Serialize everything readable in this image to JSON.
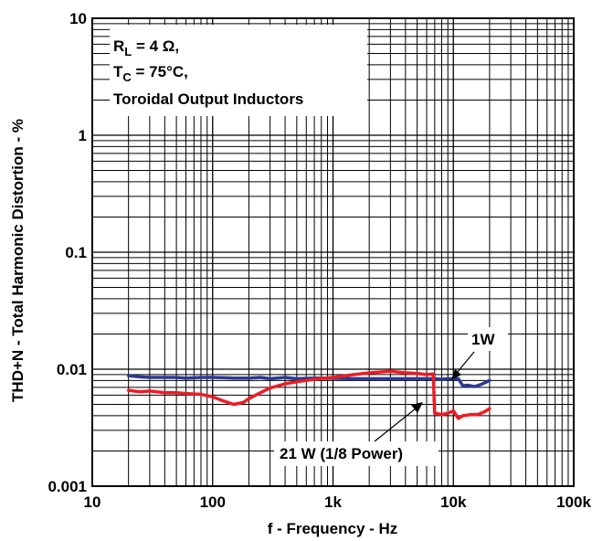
{
  "chart_data": {
    "type": "line",
    "xlabel": "f - Frequency - Hz",
    "ylabel": "THD+N - Total Harmonic Distortion - %",
    "x_scale": "log",
    "y_scale": "log",
    "xlim": [
      10,
      100000
    ],
    "ylim": [
      0.001,
      10
    ],
    "grid": true,
    "x_ticks": [
      {
        "value": 10,
        "label": "10"
      },
      {
        "value": 100,
        "label": "100"
      },
      {
        "value": 1000,
        "label": "1k"
      },
      {
        "value": 10000,
        "label": "10k"
      },
      {
        "value": 100000,
        "label": "100k"
      }
    ],
    "y_ticks": [
      {
        "value": 10,
        "label": "10"
      },
      {
        "value": 1,
        "label": "1"
      },
      {
        "value": 0.1,
        "label": "0.1"
      },
      {
        "value": 0.01,
        "label": "0.01"
      },
      {
        "value": 0.001,
        "label": "0.001"
      }
    ],
    "conditions": {
      "line1_main": "R",
      "line1_sub": "L",
      "line1_rest": " = 4 Ω,",
      "line2_main": "T",
      "line2_sub": "C",
      "line2_rest": " = 75°C,",
      "line3": "Toroidal Output Inductors"
    },
    "series": [
      {
        "label": "1W",
        "color": "#2b3990",
        "x": [
          20,
          25,
          30,
          40,
          50,
          60,
          80,
          100,
          150,
          200,
          250,
          300,
          400,
          500,
          700,
          1000,
          1500,
          2000,
          3000,
          4000,
          5000,
          6000,
          7000,
          8000,
          9000,
          10000,
          11000,
          12000,
          13000,
          15000,
          17000,
          20000
        ],
        "y": [
          0.0088,
          0.0086,
          0.0085,
          0.0085,
          0.0085,
          0.0084,
          0.0085,
          0.0085,
          0.0084,
          0.0084,
          0.0085,
          0.0083,
          0.0085,
          0.0083,
          0.0084,
          0.0084,
          0.0083,
          0.0083,
          0.0083,
          0.0083,
          0.0083,
          0.0083,
          0.0083,
          0.0082,
          0.0083,
          0.0083,
          0.0083,
          0.0072,
          0.0073,
          0.0071,
          0.0074,
          0.008
        ]
      },
      {
        "label": "21 W (1/8 Power)",
        "color": "#ed1c24",
        "x": [
          20,
          25,
          30,
          40,
          50,
          60,
          80,
          100,
          120,
          150,
          180,
          200,
          250,
          300,
          400,
          500,
          700,
          1000,
          1500,
          2000,
          3000,
          4000,
          5000,
          6000,
          6800,
          7000,
          8000,
          9000,
          10000,
          11000,
          12000,
          14000,
          16000,
          18000,
          20000
        ],
        "y": [
          0.0066,
          0.0064,
          0.0065,
          0.0063,
          0.0063,
          0.0062,
          0.0061,
          0.0058,
          0.0054,
          0.005,
          0.0052,
          0.0056,
          0.0063,
          0.0069,
          0.0075,
          0.0078,
          0.0082,
          0.0085,
          0.009,
          0.0093,
          0.0096,
          0.0093,
          0.0092,
          0.009,
          0.0091,
          0.0042,
          0.0041,
          0.0042,
          0.0044,
          0.0038,
          0.004,
          0.0041,
          0.0041,
          0.0043,
          0.0046
        ]
      }
    ]
  }
}
